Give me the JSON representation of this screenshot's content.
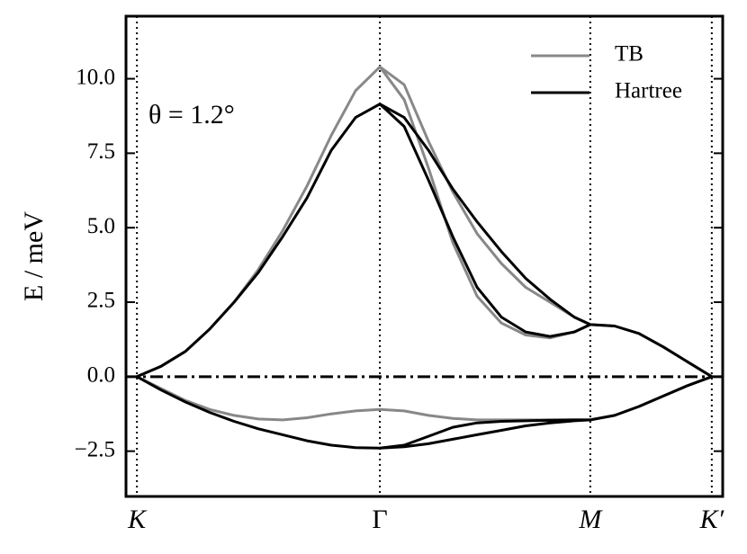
{
  "chart_data": {
    "type": "line",
    "ylabel": "E / meV",
    "annotation": "θ = 1.2°",
    "xlim": [
      -0.045,
      2.411
    ],
    "ylim": [
      -4.02,
      12.1
    ],
    "xticks": [
      {
        "value": 0,
        "label": "K"
      },
      {
        "value": 1,
        "label": "Γ"
      },
      {
        "value": 1.866,
        "label": "M"
      },
      {
        "value": 2.366,
        "label": "K′"
      }
    ],
    "yticks": [
      {
        "value": -2.5,
        "label": "−2.5"
      },
      {
        "value": 0,
        "label": "0.0"
      },
      2.5,
      {
        "value": 5,
        "label": "5.0"
      },
      7.5,
      {
        "value": 10,
        "label": "10.0"
      }
    ],
    "vertical_grid": true,
    "zero_line": true,
    "legend": "upper right",
    "series": [
      {
        "name": "TB",
        "color": "#888888",
        "x": [
          0,
          0.1,
          0.2,
          0.3,
          0.4,
          0.5,
          0.6,
          0.7,
          0.8,
          0.9,
          1.0,
          null,
          1.0,
          1.1,
          1.2,
          1.3,
          1.4,
          1.5,
          1.6,
          1.7,
          1.8,
          1.866,
          null,
          1.0,
          1.1,
          1.2,
          1.3,
          1.4,
          1.5,
          1.6,
          1.7,
          1.8,
          1.866,
          null,
          1.866,
          1.966,
          2.066,
          2.166,
          2.266,
          2.366,
          null,
          0,
          0.1,
          0.2,
          0.3,
          0.4,
          0.5,
          0.6,
          0.7,
          0.8,
          0.9,
          1.0,
          null,
          1.0,
          1.1,
          1.2,
          1.3,
          1.4,
          1.5,
          1.6,
          1.7,
          1.8,
          1.866,
          null,
          1.866,
          1.966,
          2.066,
          2.166,
          2.266,
          2.366
        ],
        "values": [
          0,
          0.35,
          0.85,
          1.6,
          2.5,
          3.6,
          4.9,
          6.4,
          8.1,
          9.6,
          10.4,
          null,
          10.4,
          9.3,
          7.0,
          4.5,
          2.7,
          1.8,
          1.4,
          1.3,
          1.5,
          1.75,
          null,
          10.4,
          9.8,
          7.9,
          6.2,
          4.8,
          3.8,
          3.0,
          2.5,
          2.0,
          1.75,
          null,
          1.75,
          1.7,
          1.45,
          1.0,
          0.5,
          0,
          null,
          0,
          -0.4,
          -0.8,
          -1.1,
          -1.3,
          -1.42,
          -1.45,
          -1.38,
          -1.25,
          -1.15,
          -1.1,
          null,
          -1.1,
          -1.15,
          -1.3,
          -1.4,
          -1.45,
          -1.45,
          -1.45,
          -1.45,
          -1.45,
          -1.45,
          null,
          -1.45,
          -1.3,
          -1.0,
          -0.65,
          -0.3,
          0
        ]
      },
      {
        "name": "Hartree",
        "color": "#000000",
        "x": [
          0,
          0.1,
          0.2,
          0.3,
          0.4,
          0.5,
          0.6,
          0.7,
          0.8,
          0.9,
          1.0,
          null,
          1.0,
          1.1,
          1.2,
          1.3,
          1.4,
          1.5,
          1.6,
          1.7,
          1.8,
          1.866,
          null,
          1.0,
          1.1,
          1.2,
          1.3,
          1.4,
          1.5,
          1.6,
          1.7,
          1.8,
          1.866,
          null,
          1.866,
          1.966,
          2.066,
          2.166,
          2.266,
          2.366,
          null,
          0,
          0.1,
          0.2,
          0.3,
          0.4,
          0.5,
          0.6,
          0.7,
          0.8,
          0.9,
          1.0,
          null,
          1.0,
          1.1,
          1.2,
          1.3,
          1.4,
          1.5,
          1.6,
          1.7,
          1.8,
          1.866,
          null,
          1.0,
          1.1,
          1.2,
          1.3,
          1.4,
          1.5,
          1.6,
          1.7,
          1.8,
          1.866,
          null,
          1.866,
          1.966,
          2.066,
          2.166,
          2.266,
          2.366
        ],
        "values": [
          0,
          0.35,
          0.85,
          1.6,
          2.5,
          3.5,
          4.7,
          6.0,
          7.6,
          8.7,
          9.15,
          null,
          9.15,
          8.4,
          6.6,
          4.7,
          3.0,
          2.0,
          1.5,
          1.35,
          1.5,
          1.75,
          null,
          9.15,
          8.7,
          7.6,
          6.3,
          5.2,
          4.2,
          3.3,
          2.6,
          2.0,
          1.75,
          null,
          1.75,
          1.7,
          1.45,
          1.0,
          0.5,
          0,
          null,
          0,
          -0.45,
          -0.85,
          -1.2,
          -1.5,
          -1.75,
          -1.95,
          -2.15,
          -2.3,
          -2.38,
          -2.4,
          null,
          -2.4,
          -2.3,
          -2.0,
          -1.7,
          -1.55,
          -1.5,
          -1.48,
          -1.46,
          -1.45,
          -1.45,
          null,
          -2.4,
          -2.35,
          -2.25,
          -2.1,
          -1.95,
          -1.8,
          -1.65,
          -1.55,
          -1.48,
          -1.45,
          null,
          -1.45,
          -1.3,
          -1.0,
          -0.65,
          -0.3,
          0
        ]
      }
    ]
  }
}
